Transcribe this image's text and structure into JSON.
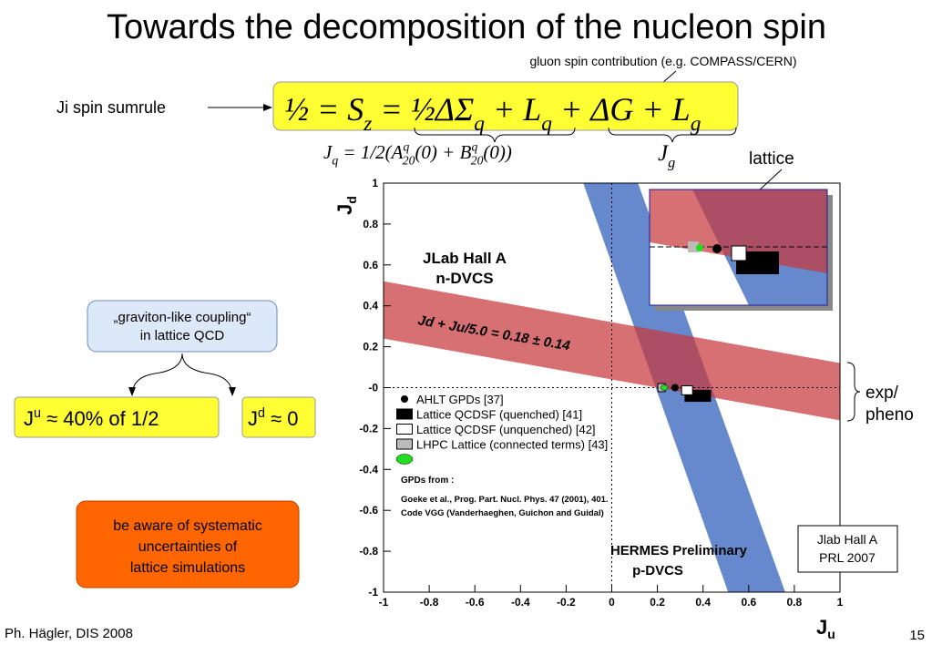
{
  "slide": {
    "title": "Towards the decomposition of the nucleon spin",
    "gluon_note": "gluon spin contribution (e.g. COMPASS/CERN)",
    "sumrule_label": "Ji spin sumrule",
    "sumrule_parts": [
      "½ = S",
      "z",
      " = ½ΔΣ",
      "q",
      " + L",
      "q",
      " + ΔG + L",
      "g"
    ],
    "jq_parts": [
      "J",
      "q",
      " = 1/2(A",
      "q",
      "20",
      "(0) + B",
      "q",
      "20",
      "(0))"
    ],
    "jg_parts": [
      "J",
      "g"
    ],
    "lattice_label": "lattice",
    "graviton_lines": [
      "„graviton-like coupling“",
      "in lattice QCD"
    ],
    "ju_parts": [
      "J",
      "u",
      " ≈ 40% of 1/2"
    ],
    "jd_parts": [
      "J",
      "d",
      " ≈ 0"
    ],
    "warning_lines": [
      "be aware of systematic",
      "uncertainties of",
      "lattice simulations"
    ],
    "exp_lines": [
      "exp/",
      "pheno"
    ],
    "jlab_lines": [
      "Jlab Hall A",
      "PRL 2007"
    ],
    "footer": "Ph. Hägler, DIS 2008",
    "page_number": "15"
  },
  "chart_data": {
    "type": "scatter",
    "xlabel": "J",
    "xlabel_sub": "u",
    "ylabel": "J",
    "ylabel_sub": "d",
    "xlim": [
      -1,
      1
    ],
    "ylim": [
      -1,
      1
    ],
    "xticks": [
      -1,
      -0.8,
      -0.6,
      -0.4,
      -0.2,
      0,
      0.2,
      0.4,
      0.6,
      0.8,
      1
    ],
    "yticks": [
      -1,
      -0.8,
      -0.6,
      -0.4,
      -0.2,
      {
        "value": 0,
        "label": "-0"
      },
      0.2,
      0.4,
      0.6,
      0.8,
      1
    ],
    "annotations": [
      "JLab Hall A",
      "n-DVCS",
      "HERMES Preliminary",
      "p-DVCS",
      "Jd + Ju/5.0 = 0.18 ± 0.14"
    ],
    "sources": [
      "GPDs from :",
      "Goeke et al., Prog. Part. Nucl. Phys. 47 (2001), 401.",
      "Code VGG  (Vanderhaeghen, Guichon and Guidal)"
    ],
    "bands": [
      {
        "color": "#c8393b",
        "x": [
          -1,
          1
        ],
        "y_low": [
          0.24,
          -0.16
        ],
        "y_high": [
          0.52,
          0.12
        ]
      },
      {
        "color": "#6589cc",
        "y": [
          1,
          -1
        ],
        "x_low": [
          -0.125,
          0.51
        ],
        "x_high": [
          0.115,
          0.76
        ]
      }
    ],
    "series": [
      {
        "name": "AHLT GPDs [37]",
        "marker": "circle",
        "color": "#000000",
        "x": [
          0.277
        ],
        "y": [
          0.0
        ]
      },
      {
        "name": "Lattice QCDSF (quenched) [41]",
        "marker": "square",
        "color": "#000000",
        "x": [
          0.377
        ],
        "xerr": [
          0.056
        ],
        "y": [
          -0.04
        ],
        "yerr": [
          0.027
        ]
      },
      {
        "name": "Lattice QCDSF (unquenched) [42]",
        "marker": "square",
        "color": "#ffffff",
        "x": [
          0.33
        ],
        "xerr": [
          0.024
        ],
        "y": [
          -0.013
        ],
        "yerr": [
          0.022
        ]
      },
      {
        "name": "LHPC Lattice (connected terms) [43]",
        "marker": "square",
        "color": "#bbbbbb",
        "x": [
          0.218
        ],
        "xerr": [
          0.016
        ],
        "y": [
          0.0
        ],
        "yerr": [
          0.02
        ]
      },
      {
        "marker": "ellipse",
        "color": "#22dd22",
        "x": [
          0.23
        ],
        "xerr": [
          0.016
        ],
        "y": [
          0.0
        ],
        "yerr": [
          0.013
        ]
      }
    ]
  }
}
